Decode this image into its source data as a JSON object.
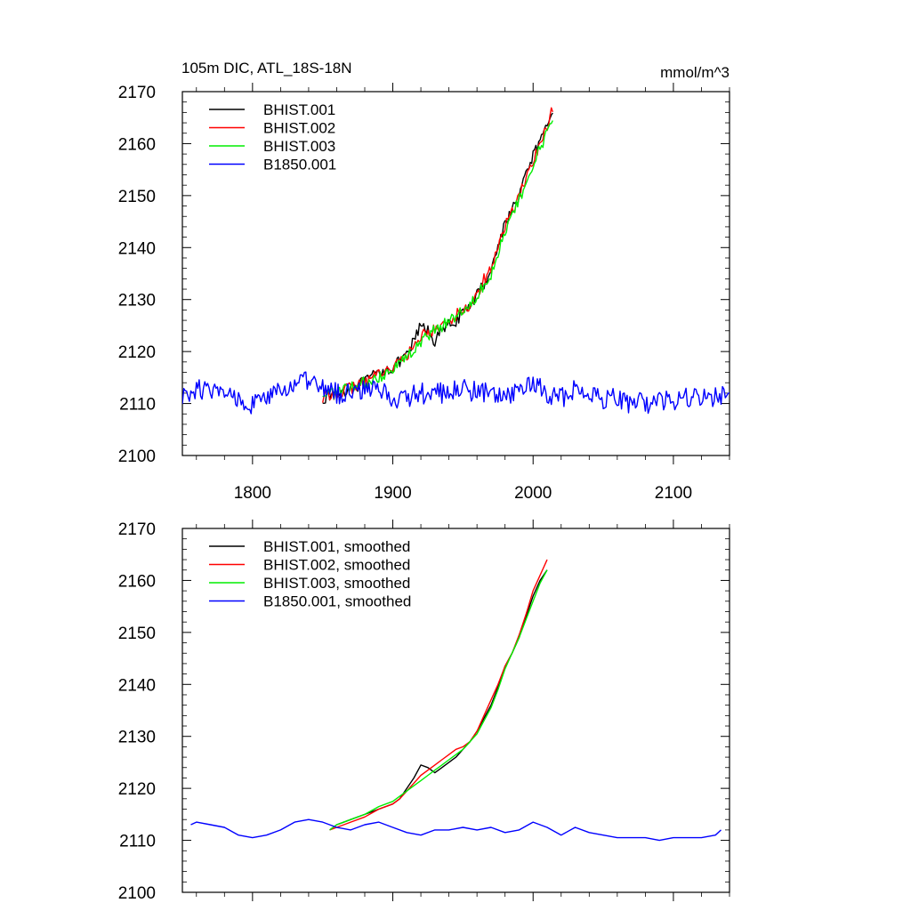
{
  "figure": {
    "title_left": "105m DIC, ATL_18S-18N",
    "title_right": "mmol/m^3"
  },
  "colors": {
    "BHIST.001": "#000000",
    "BHIST.002": "#ff0000",
    "BHIST.003": "#00ee00",
    "B1850.001": "#0000ff"
  },
  "chart_data": [
    {
      "type": "line",
      "title": "105m DIC, ATL_18S-18N",
      "units": "mmol/m^3",
      "xlim": [
        1750,
        2140
      ],
      "ylim": [
        2100,
        2170
      ],
      "xticks": [
        1800,
        1900,
        2000,
        2100
      ],
      "xtick_labels": [
        "1800",
        "1900",
        "2000",
        "2100"
      ],
      "yticks": [
        2100,
        2110,
        2120,
        2130,
        2140,
        2150,
        2160,
        2170
      ],
      "ytick_labels": [
        "2100",
        "2110",
        "2120",
        "2130",
        "2140",
        "2150",
        "2160",
        "2170"
      ],
      "grid": false,
      "legend_position": "top-left",
      "series": [
        {
          "name": "BHIST.001",
          "x": [
            1850,
            1860,
            1870,
            1880,
            1890,
            1900,
            1910,
            1915,
            1920,
            1925,
            1930,
            1935,
            1940,
            1945,
            1950,
            1955,
            1960,
            1965,
            1970,
            1975,
            1980,
            1985,
            1990,
            1995,
            2000,
            2005,
            2010,
            2014
          ],
          "y": [
            2111,
            2112,
            2113,
            2114,
            2116,
            2117,
            2119,
            2122,
            2125,
            2124,
            2122,
            2124,
            2125,
            2126,
            2127,
            2129,
            2131,
            2133,
            2136,
            2140,
            2145,
            2147,
            2150,
            2154,
            2158,
            2160,
            2163,
            2167
          ]
        },
        {
          "name": "BHIST.002",
          "x": [
            1850,
            1860,
            1870,
            1880,
            1890,
            1900,
            1910,
            1915,
            1920,
            1925,
            1930,
            1935,
            1940,
            1945,
            1950,
            1955,
            1960,
            1965,
            1970,
            1975,
            1980,
            1985,
            1990,
            1995,
            2000,
            2005,
            2010,
            2014
          ],
          "y": [
            2111,
            2112,
            2113,
            2114,
            2116,
            2117,
            2119,
            2121,
            2123,
            2124,
            2124,
            2125,
            2126,
            2127,
            2128,
            2129,
            2131,
            2134,
            2136,
            2140,
            2144,
            2147,
            2150,
            2153,
            2157,
            2160,
            2163,
            2167
          ]
        },
        {
          "name": "BHIST.003",
          "x": [
            1850,
            1860,
            1870,
            1880,
            1890,
            1900,
            1910,
            1915,
            1920,
            1925,
            1930,
            1935,
            1940,
            1945,
            1950,
            1955,
            1960,
            1965,
            1970,
            1975,
            1980,
            1985,
            1990,
            1995,
            2000,
            2005,
            2010,
            2014
          ],
          "y": [
            2112,
            2112,
            2113,
            2114,
            2115,
            2117,
            2119,
            2120,
            2122,
            2123,
            2124,
            2125,
            2126,
            2127,
            2128,
            2129,
            2131,
            2133,
            2135,
            2139,
            2143,
            2146,
            2149,
            2152,
            2156,
            2159,
            2162,
            2165
          ]
        },
        {
          "name": "B1850.001",
          "x": [
            1750,
            1760,
            1770,
            1780,
            1790,
            1800,
            1810,
            1820,
            1830,
            1840,
            1850,
            1860,
            1870,
            1880,
            1890,
            1900,
            1910,
            1920,
            1930,
            1940,
            1950,
            1960,
            1970,
            1980,
            1990,
            2000,
            2010,
            2020,
            2030,
            2040,
            2050,
            2060,
            2070,
            2080,
            2090,
            2100,
            2110,
            2120,
            2130,
            2140
          ],
          "y": [
            2111,
            2113,
            2112,
            2112,
            2111,
            2110,
            2111,
            2112,
            2114,
            2114,
            2113,
            2112,
            2112,
            2113,
            2113,
            2111,
            2111,
            2112,
            2112,
            2112,
            2113,
            2112,
            2112,
            2111,
            2112,
            2114,
            2112,
            2111,
            2113,
            2112,
            2111,
            2111,
            2110,
            2110,
            2111,
            2110,
            2111,
            2111,
            2111,
            2112
          ]
        }
      ]
    },
    {
      "type": "line",
      "xlim": [
        1750,
        2140
      ],
      "ylim": [
        2100,
        2170
      ],
      "xticks": [
        1800,
        1900,
        2000,
        2100
      ],
      "xtick_labels": [],
      "yticks": [
        2100,
        2110,
        2120,
        2130,
        2140,
        2150,
        2160,
        2170
      ],
      "ytick_labels": [
        "2100",
        "2110",
        "2120",
        "2130",
        "2140",
        "2150",
        "2160",
        "2170"
      ],
      "grid": false,
      "legend_position": "top-left",
      "series": [
        {
          "name": "BHIST.001, smoothed",
          "x": [
            1855,
            1860,
            1870,
            1880,
            1890,
            1900,
            1905,
            1910,
            1915,
            1920,
            1925,
            1930,
            1935,
            1940,
            1945,
            1950,
            1955,
            1960,
            1965,
            1970,
            1975,
            1980,
            1985,
            1990,
            1995,
            2000,
            2005,
            2010
          ],
          "y": [
            2112,
            2113,
            2114,
            2115,
            2116,
            2117,
            2118,
            2120,
            2122,
            2124.5,
            2124,
            2123,
            2124,
            2125,
            2126,
            2127.5,
            2129,
            2131,
            2133.5,
            2136,
            2139.5,
            2143.5,
            2146,
            2149,
            2153,
            2157,
            2160,
            2162
          ]
        },
        {
          "name": "BHIST.002, smoothed",
          "x": [
            1855,
            1860,
            1870,
            1880,
            1890,
            1900,
            1905,
            1910,
            1915,
            1920,
            1925,
            1930,
            1935,
            1940,
            1945,
            1950,
            1955,
            1960,
            1965,
            1970,
            1975,
            1980,
            1985,
            1990,
            1995,
            2000,
            2005,
            2010
          ],
          "y": [
            2112,
            2112.5,
            2113.5,
            2114.5,
            2116,
            2117,
            2118,
            2119.5,
            2121,
            2122.5,
            2123.5,
            2124.5,
            2125.5,
            2126.5,
            2127.5,
            2128,
            2129,
            2131,
            2134,
            2137,
            2140,
            2143.5,
            2146,
            2149.5,
            2153.5,
            2158,
            2161,
            2164
          ]
        },
        {
          "name": "BHIST.003, smoothed",
          "x": [
            1855,
            1860,
            1870,
            1880,
            1890,
            1900,
            1905,
            1910,
            1915,
            1920,
            1925,
            1930,
            1935,
            1940,
            1945,
            1950,
            1955,
            1960,
            1965,
            1970,
            1975,
            1980,
            1985,
            1990,
            1995,
            2000,
            2005,
            2010
          ],
          "y": [
            2112,
            2113,
            2114,
            2115,
            2116.5,
            2117.5,
            2118.5,
            2119.5,
            2120.5,
            2121.5,
            2122.5,
            2123.5,
            2124.5,
            2125.5,
            2126.5,
            2127.5,
            2129,
            2130.5,
            2133,
            2135.5,
            2139,
            2143,
            2146,
            2149,
            2152.5,
            2156,
            2159.5,
            2162
          ]
        },
        {
          "name": "B1850.001, smoothed",
          "x": [
            1756,
            1760,
            1770,
            1780,
            1790,
            1800,
            1810,
            1820,
            1830,
            1840,
            1850,
            1860,
            1870,
            1880,
            1890,
            1900,
            1910,
            1920,
            1930,
            1940,
            1950,
            1960,
            1970,
            1980,
            1990,
            2000,
            2010,
            2020,
            2030,
            2040,
            2050,
            2060,
            2070,
            2080,
            2090,
            2100,
            2110,
            2120,
            2130,
            2134
          ],
          "y": [
            2113,
            2113.5,
            2113,
            2112.5,
            2111,
            2110.5,
            2111,
            2112,
            2113.5,
            2114,
            2113.5,
            2112.5,
            2112,
            2113,
            2113.5,
            2112.5,
            2111.5,
            2111,
            2112,
            2112,
            2112.5,
            2112,
            2112.5,
            2111.5,
            2112,
            2113.5,
            2112.5,
            2111,
            2112.5,
            2111.5,
            2111,
            2110.5,
            2110.5,
            2110.5,
            2110,
            2110.5,
            2110.5,
            2110.5,
            2111,
            2112
          ]
        }
      ]
    }
  ]
}
